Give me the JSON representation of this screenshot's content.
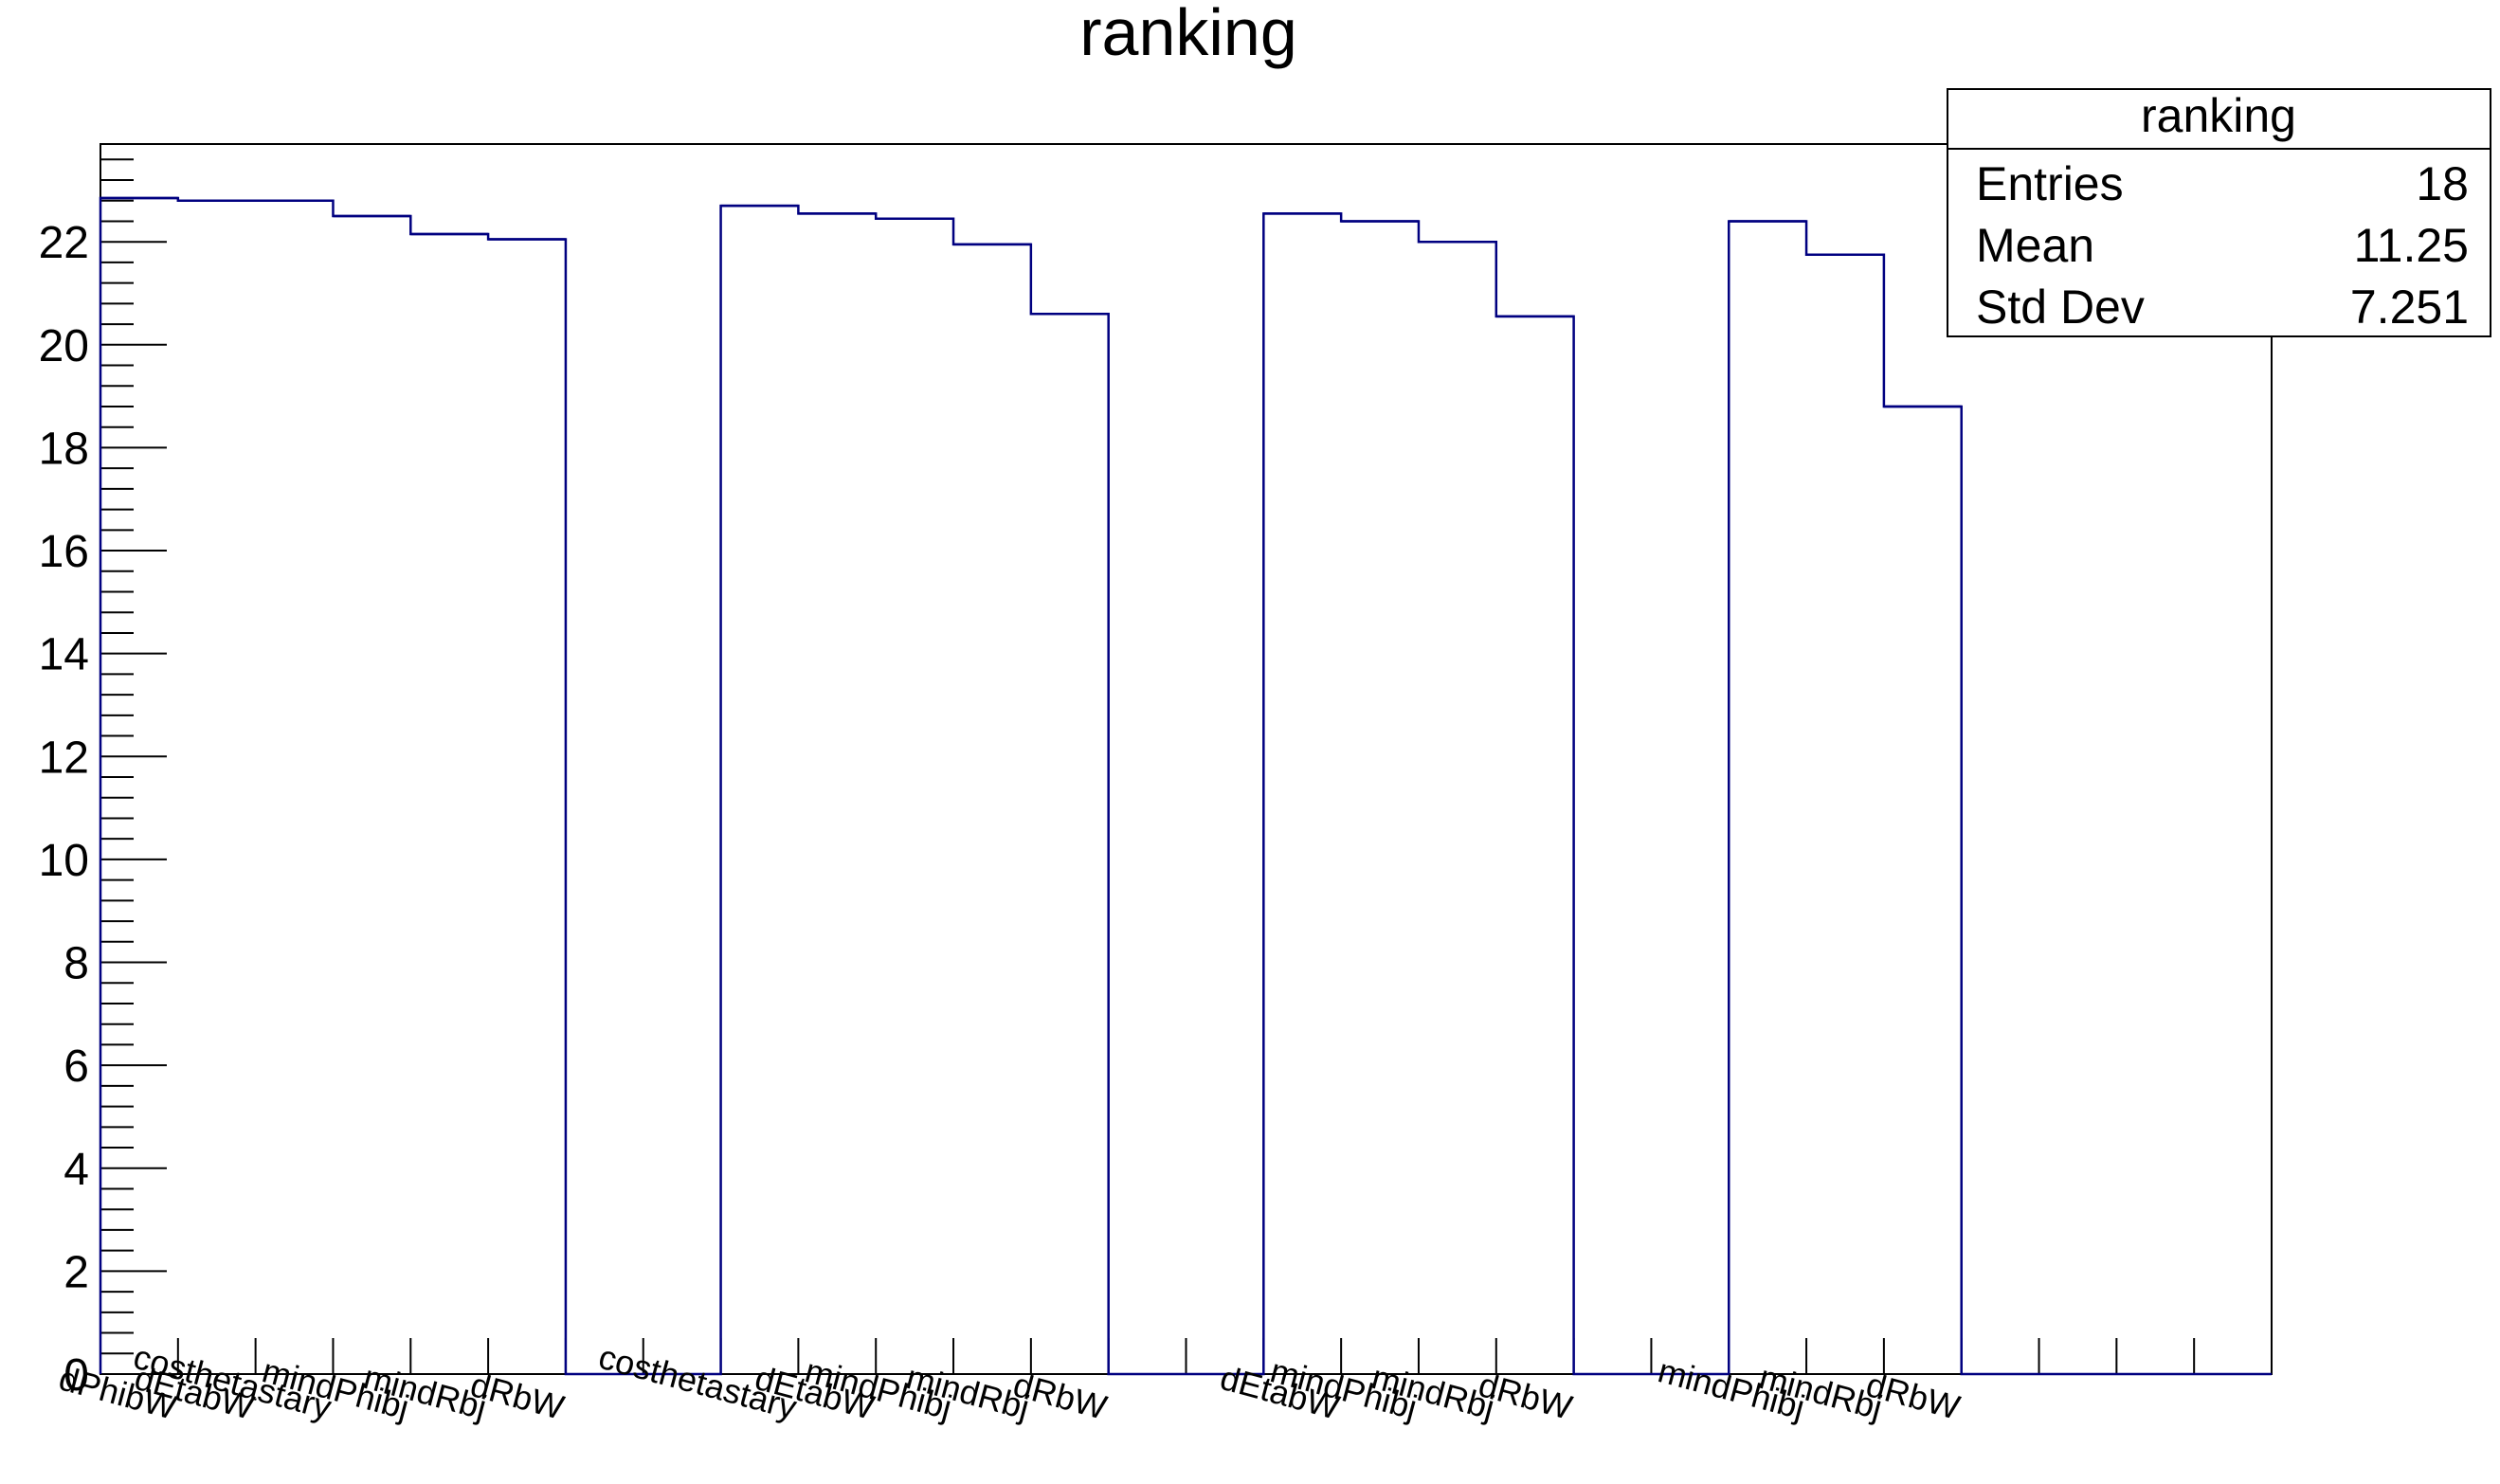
{
  "chart_data": {
    "type": "bar",
    "title": "ranking",
    "xlabel": "",
    "ylabel": "",
    "ylim": [
      0,
      23.9
    ],
    "yticks": [
      "0",
      "2",
      "4",
      "6",
      "8",
      "10",
      "12",
      "14",
      "16",
      "18",
      "20",
      "22"
    ],
    "grid": false,
    "categories": [
      "dPhibW",
      "dEtabW",
      "costhetastary",
      "mindPhibj",
      "mindRbj",
      "dRbW",
      "",
      "",
      "costhetastary",
      "dEtabW",
      "mindPhibj",
      "mindRbj",
      "dRbW",
      "",
      "",
      "dEtabW",
      "mindPhibj",
      "mindRbj",
      "dRbW",
      "",
      "",
      "mindPhibj",
      "mindRbj",
      "dRbW",
      "",
      "",
      "",
      ""
    ],
    "values": [
      22.85,
      22.8,
      22.8,
      22.5,
      22.15,
      22.05,
      0,
      0,
      22.7,
      22.55,
      22.45,
      21.95,
      20.6,
      0,
      0,
      22.55,
      22.4,
      22.0,
      20.55,
      0,
      0,
      22.4,
      21.75,
      18.8,
      0,
      0,
      0,
      0
    ],
    "series": [
      {
        "values": [
          22.85,
          22.8,
          22.8,
          22.5,
          22.15,
          22.05,
          0,
          0,
          22.7,
          22.55,
          22.45,
          21.95,
          20.6,
          0,
          0,
          22.55,
          22.4,
          22.0,
          20.55,
          0,
          0,
          22.4,
          21.75,
          18.8,
          0,
          0,
          0,
          0
        ],
        "color": "#000080"
      }
    ],
    "stats_box": {
      "title": "ranking",
      "rows": [
        {
          "label": "Entries",
          "value": "18"
        },
        {
          "label": "Mean",
          "value": "11.25"
        },
        {
          "label": "Std Dev",
          "value": "7.251"
        }
      ]
    },
    "line_color": "#000080",
    "axis_color": "#000000"
  }
}
